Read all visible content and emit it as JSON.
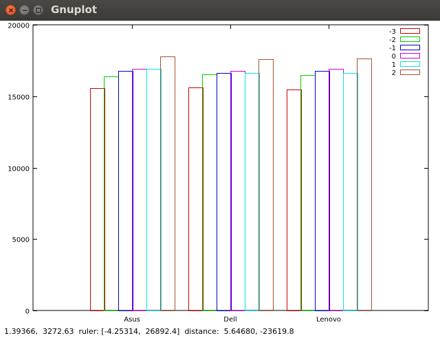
{
  "window": {
    "title": "Gnuplot",
    "buttons": {
      "close": "close",
      "minimize": "minimize",
      "maximize": "maximize"
    }
  },
  "status_bar": {
    "text": "1.39366,  3272.63  ruler: [-4.25314,  26892.4]  distance:  5.64680, -23619.8"
  },
  "chart_data": {
    "type": "bar",
    "title": "",
    "xlabel": "",
    "ylabel": "",
    "ylim": [
      0,
      20000
    ],
    "yticks": [
      0,
      5000,
      10000,
      15000,
      20000
    ],
    "categories": [
      "Asus",
      "Dell",
      "Lenovo"
    ],
    "grid": false,
    "legend_position": "top-right",
    "series": [
      {
        "name": "-3",
        "color": "#cc0000",
        "values": [
          15550,
          15630,
          15450
        ]
      },
      {
        "name": "-2",
        "color": "#00cc00",
        "values": [
          16400,
          16550,
          16500
        ]
      },
      {
        "name": "-1",
        "color": "#0000cc",
        "values": [
          16750,
          16650,
          16750
        ]
      },
      {
        "name": "0",
        "color": "#cc00cc",
        "values": [
          16900,
          16750,
          16900
        ]
      },
      {
        "name": "1",
        "color": "#00e5e5",
        "values": [
          16900,
          16650,
          16650
        ]
      },
      {
        "name": "2",
        "color": "#a0522d",
        "values": [
          17800,
          17600,
          17650
        ]
      }
    ]
  }
}
